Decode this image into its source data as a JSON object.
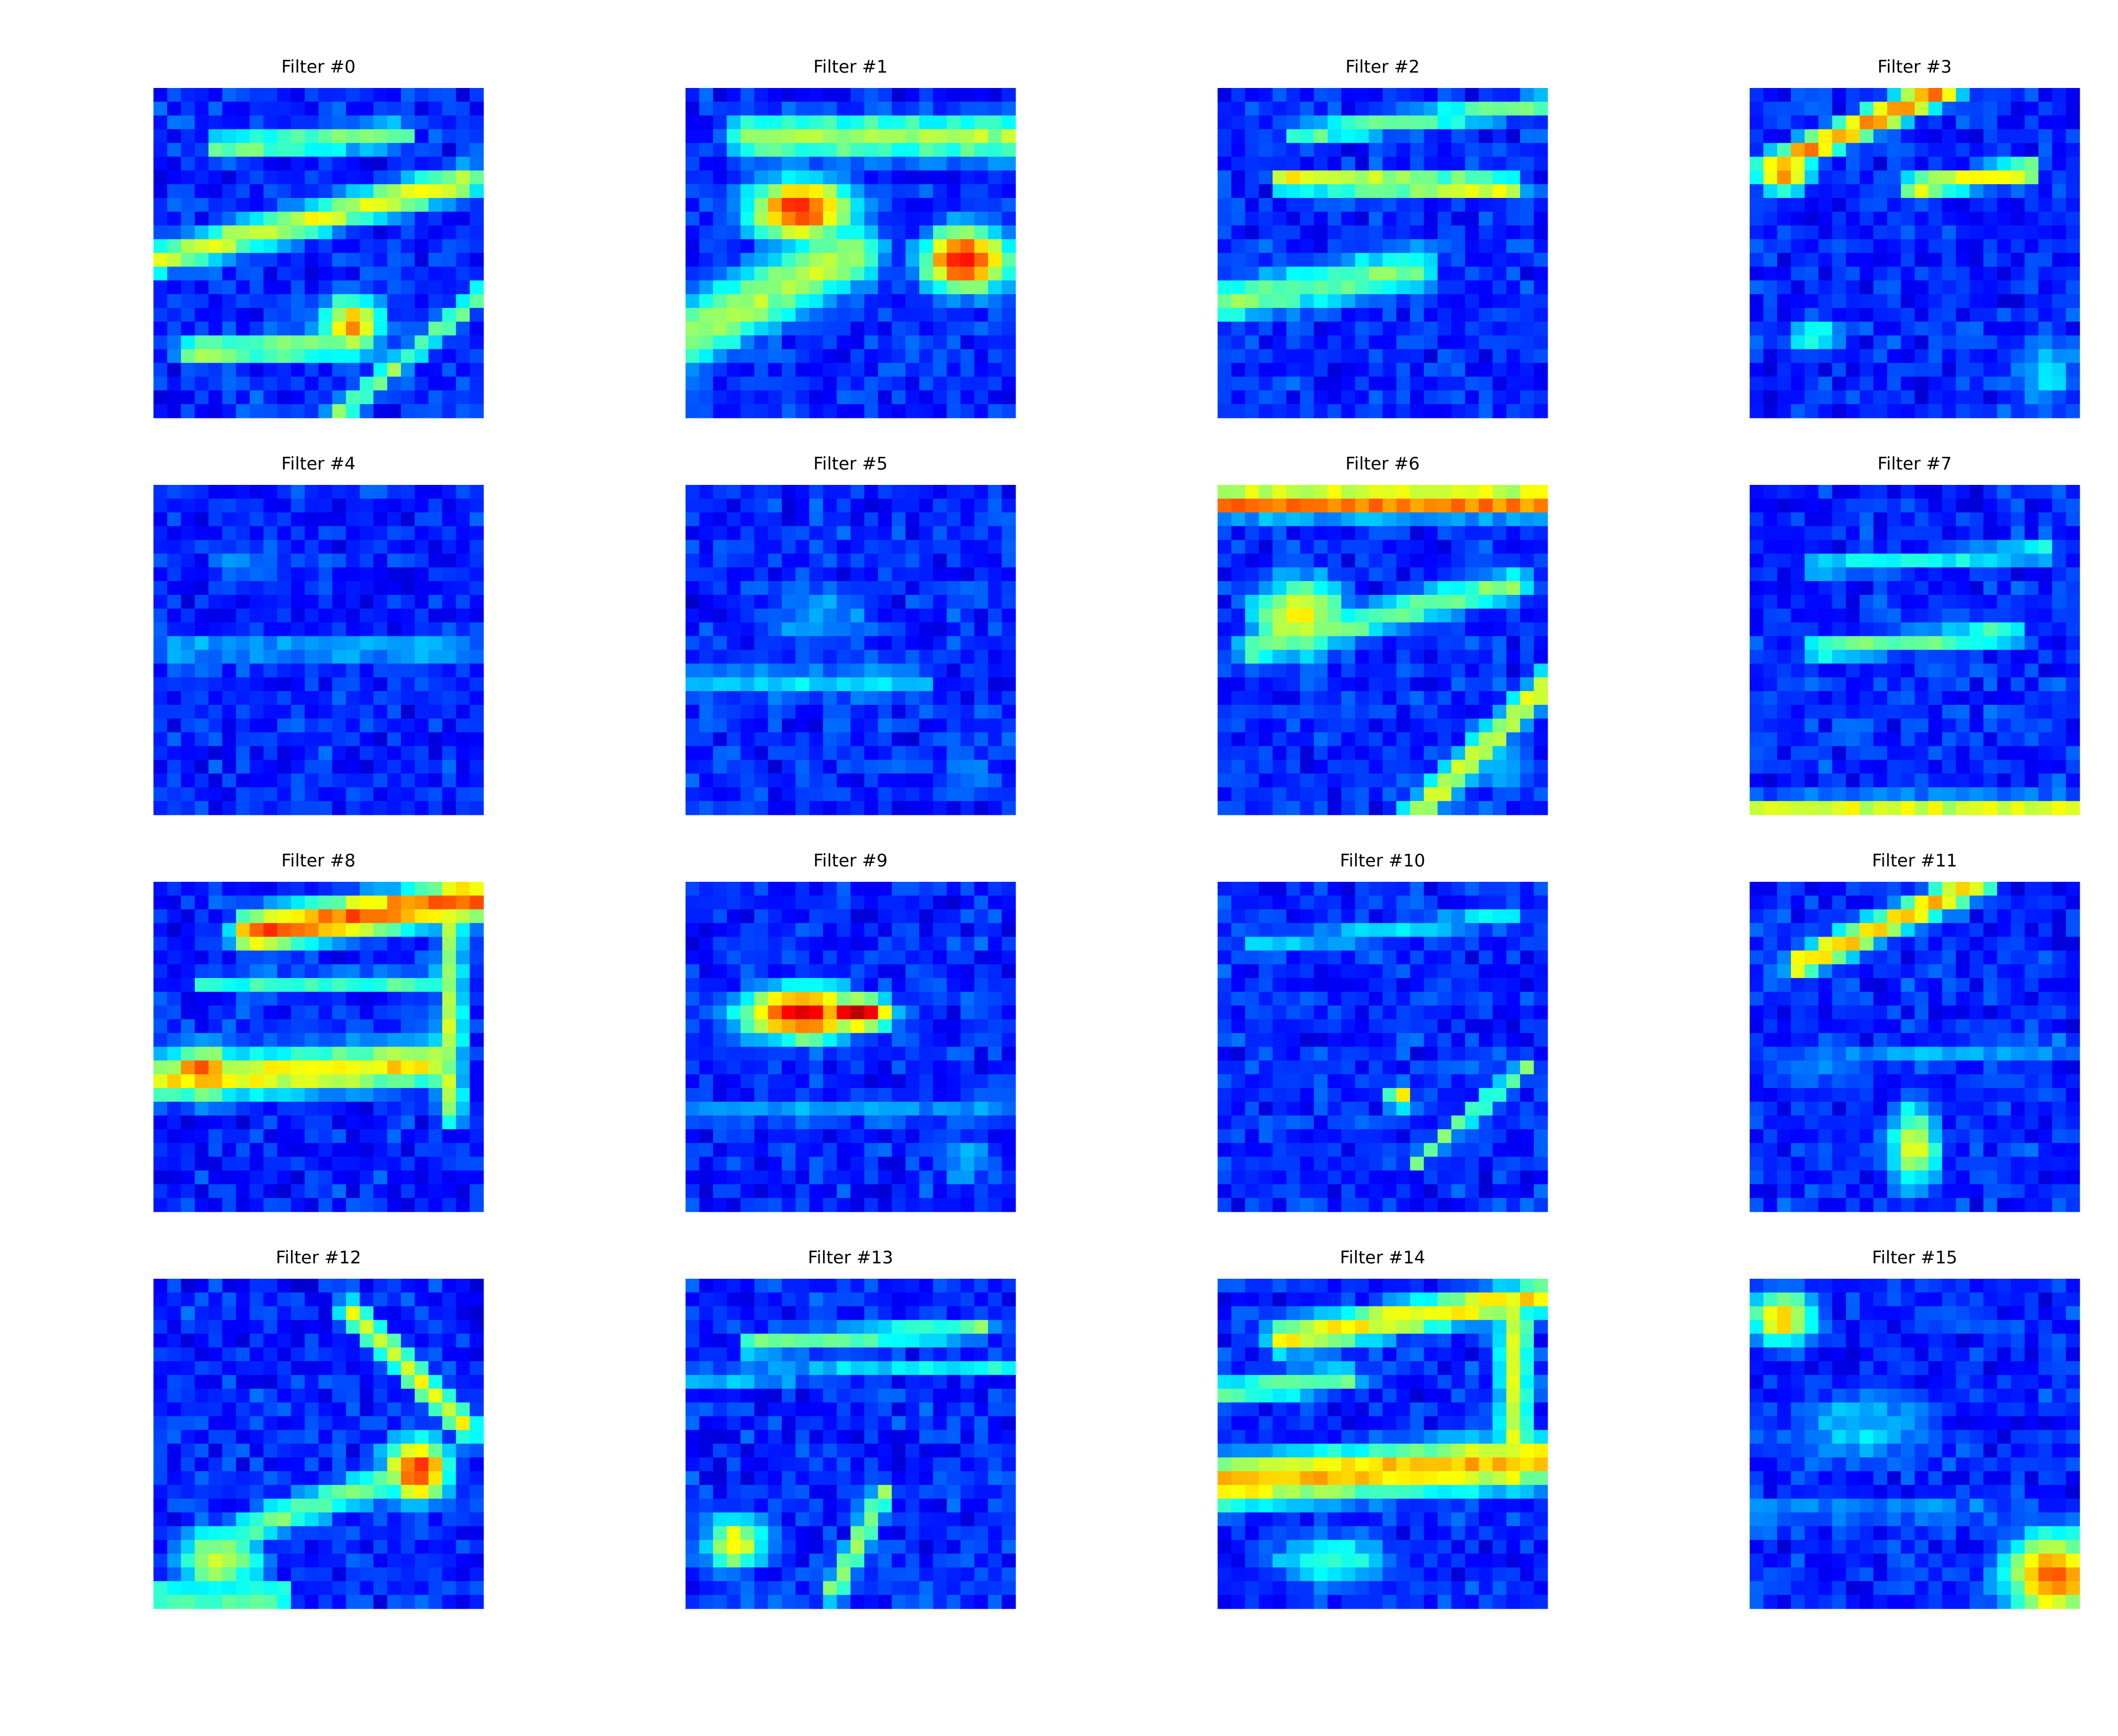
{
  "chart_data": {
    "type": "heatmap",
    "colormap": "jet",
    "grid": false,
    "axes_visible": false,
    "rows": 4,
    "cols": 4,
    "cells_per_side": 24,
    "panels": [
      {
        "title": "Filter #0",
        "features": [
          {
            "type": "band",
            "x0": 0.0,
            "y0": 0.52,
            "x1": 0.95,
            "y1": 0.28,
            "w": 0.06,
            "v": 0.55
          },
          {
            "type": "band",
            "x0": 0.2,
            "y0": 0.18,
            "x1": 0.75,
            "y1": 0.14,
            "w": 0.05,
            "v": 0.45
          },
          {
            "type": "blob",
            "cx": 0.6,
            "cy": 0.72,
            "rx": 0.12,
            "ry": 0.12,
            "v": 0.65
          },
          {
            "type": "band",
            "x0": 0.1,
            "y0": 0.8,
            "x1": 0.6,
            "y1": 0.78,
            "w": 0.05,
            "v": 0.5
          },
          {
            "type": "band",
            "x0": 0.55,
            "y0": 1.0,
            "x1": 1.0,
            "y1": 0.62,
            "w": 0.04,
            "v": 0.45
          }
        ]
      },
      {
        "title": "Filter #1",
        "features": [
          {
            "type": "blob",
            "cx": 0.35,
            "cy": 0.37,
            "rx": 0.2,
            "ry": 0.12,
            "v": 0.8
          },
          {
            "type": "blob",
            "cx": 0.85,
            "cy": 0.52,
            "rx": 0.16,
            "ry": 0.12,
            "v": 0.85
          },
          {
            "type": "band",
            "x0": 0.0,
            "y0": 0.75,
            "x1": 0.5,
            "y1": 0.5,
            "w": 0.12,
            "v": 0.5
          },
          {
            "type": "band",
            "x0": 0.2,
            "y0": 0.15,
            "x1": 1.0,
            "y1": 0.15,
            "w": 0.08,
            "v": 0.5
          }
        ]
      },
      {
        "title": "Filter #2",
        "features": [
          {
            "type": "band",
            "x0": 0.2,
            "y0": 0.28,
            "x1": 0.9,
            "y1": 0.3,
            "w": 0.04,
            "v": 0.6
          },
          {
            "type": "band",
            "x0": 0.0,
            "y0": 0.65,
            "x1": 0.6,
            "y1": 0.55,
            "w": 0.08,
            "v": 0.45
          },
          {
            "type": "band",
            "x0": 0.25,
            "y0": 0.14,
            "x1": 1.0,
            "y1": 0.05,
            "w": 0.04,
            "v": 0.45
          }
        ]
      },
      {
        "title": "Filter #3",
        "features": [
          {
            "type": "blob",
            "cx": 0.1,
            "cy": 0.25,
            "rx": 0.1,
            "ry": 0.08,
            "v": 0.75
          },
          {
            "type": "band",
            "x0": 0.15,
            "y0": 0.2,
            "x1": 0.6,
            "y1": 0.0,
            "w": 0.05,
            "v": 0.7
          },
          {
            "type": "blob",
            "cx": 0.9,
            "cy": 0.86,
            "rx": 0.15,
            "ry": 0.14,
            "v": 0.3
          },
          {
            "type": "band",
            "x0": 0.5,
            "y0": 0.3,
            "x1": 0.85,
            "y1": 0.25,
            "w": 0.04,
            "v": 0.6
          },
          {
            "type": "blob",
            "cx": 0.2,
            "cy": 0.75,
            "rx": 0.1,
            "ry": 0.05,
            "v": 0.45
          }
        ]
      },
      {
        "title": "Filter #4",
        "features": [
          {
            "type": "band",
            "x0": 0.05,
            "y0": 0.5,
            "x1": 0.95,
            "y1": 0.5,
            "w": 0.06,
            "v": 0.25
          },
          {
            "type": "blob",
            "cx": 0.3,
            "cy": 0.25,
            "rx": 0.25,
            "ry": 0.12,
            "v": 0.2
          }
        ]
      },
      {
        "title": "Filter #5",
        "features": [
          {
            "type": "blob",
            "cx": 0.4,
            "cy": 0.4,
            "rx": 0.25,
            "ry": 0.15,
            "v": 0.25
          },
          {
            "type": "band",
            "x0": 0.0,
            "y0": 0.6,
            "x1": 0.7,
            "y1": 0.6,
            "w": 0.06,
            "v": 0.3
          },
          {
            "type": "blob",
            "cx": 0.85,
            "cy": 0.88,
            "rx": 0.14,
            "ry": 0.12,
            "v": 0.2
          }
        ]
      },
      {
        "title": "Filter #6",
        "features": [
          {
            "type": "blob",
            "cx": 0.25,
            "cy": 0.4,
            "rx": 0.18,
            "ry": 0.15,
            "v": 0.6
          },
          {
            "type": "band",
            "x0": 0.0,
            "y0": 0.05,
            "x1": 1.0,
            "y1": 0.05,
            "w": 0.05,
            "v": 0.75
          },
          {
            "type": "band",
            "x0": 0.6,
            "y0": 1.0,
            "x1": 1.0,
            "y1": 0.6,
            "w": 0.05,
            "v": 0.55
          },
          {
            "type": "band",
            "x0": 0.1,
            "y0": 0.5,
            "x1": 0.9,
            "y1": 0.3,
            "w": 0.06,
            "v": 0.45
          },
          {
            "type": "blob",
            "cx": 0.85,
            "cy": 0.85,
            "rx": 0.13,
            "ry": 0.12,
            "v": 0.28
          }
        ]
      },
      {
        "title": "Filter #7",
        "features": [
          {
            "type": "band",
            "x0": 0.2,
            "y0": 0.5,
            "x1": 0.8,
            "y1": 0.45,
            "w": 0.04,
            "v": 0.45
          },
          {
            "type": "band",
            "x0": 0.2,
            "y0": 0.25,
            "x1": 0.9,
            "y1": 0.2,
            "w": 0.04,
            "v": 0.35
          },
          {
            "type": "band",
            "x0": 0.0,
            "y0": 0.97,
            "x1": 1.0,
            "y1": 0.97,
            "w": 0.03,
            "v": 0.6
          }
        ]
      },
      {
        "title": "Filter #8",
        "features": [
          {
            "type": "band",
            "x0": 0.3,
            "y0": 0.15,
            "x1": 1.0,
            "y1": 0.05,
            "w": 0.07,
            "v": 0.75
          },
          {
            "type": "blob",
            "cx": 0.15,
            "cy": 0.58,
            "rx": 0.15,
            "ry": 0.1,
            "v": 0.75
          },
          {
            "type": "band",
            "x0": 0.0,
            "y0": 0.6,
            "x1": 0.85,
            "y1": 0.55,
            "w": 0.08,
            "v": 0.6
          },
          {
            "type": "band",
            "x0": 0.9,
            "y0": 0.1,
            "x1": 0.9,
            "y1": 0.7,
            "w": 0.05,
            "v": 0.5
          },
          {
            "type": "band",
            "x0": 0.15,
            "y0": 0.3,
            "x1": 0.9,
            "y1": 0.3,
            "w": 0.03,
            "v": 0.45
          }
        ]
      },
      {
        "title": "Filter #9",
        "features": [
          {
            "type": "blob",
            "cx": 0.35,
            "cy": 0.4,
            "rx": 0.22,
            "ry": 0.1,
            "v": 0.85
          },
          {
            "type": "blob",
            "cx": 0.52,
            "cy": 0.4,
            "rx": 0.12,
            "ry": 0.06,
            "v": 0.95
          },
          {
            "type": "blob",
            "cx": 0.85,
            "cy": 0.85,
            "rx": 0.16,
            "ry": 0.12,
            "v": 0.25
          },
          {
            "type": "band",
            "x0": 0.0,
            "y0": 0.7,
            "x1": 1.0,
            "y1": 0.7,
            "w": 0.04,
            "v": 0.25
          }
        ]
      },
      {
        "title": "Filter #10",
        "features": [
          {
            "type": "band",
            "x0": 0.6,
            "y0": 0.85,
            "x1": 0.95,
            "y1": 0.55,
            "w": 0.03,
            "v": 0.45
          },
          {
            "type": "blob",
            "cx": 0.55,
            "cy": 0.65,
            "rx": 0.05,
            "ry": 0.05,
            "v": 0.6
          },
          {
            "type": "band",
            "x0": 0.1,
            "y0": 0.2,
            "x1": 0.9,
            "y1": 0.1,
            "w": 0.04,
            "v": 0.3
          }
        ]
      },
      {
        "title": "Filter #11",
        "features": [
          {
            "type": "band",
            "x0": 0.15,
            "y0": 0.25,
            "x1": 0.7,
            "y1": 0.0,
            "w": 0.05,
            "v": 0.65
          },
          {
            "type": "blob",
            "cx": 0.5,
            "cy": 0.8,
            "rx": 0.1,
            "ry": 0.16,
            "v": 0.55
          },
          {
            "type": "band",
            "x0": 0.1,
            "y0": 0.55,
            "x1": 0.95,
            "y1": 0.5,
            "w": 0.04,
            "v": 0.25
          }
        ]
      },
      {
        "title": "Filter #12",
        "features": [
          {
            "type": "blob",
            "cx": 0.8,
            "cy": 0.58,
            "rx": 0.12,
            "ry": 0.12,
            "v": 0.8
          },
          {
            "type": "band",
            "x0": 0.6,
            "y0": 0.1,
            "x1": 0.95,
            "y1": 0.45,
            "w": 0.05,
            "v": 0.55
          },
          {
            "type": "blob",
            "cx": 0.2,
            "cy": 0.85,
            "rx": 0.16,
            "ry": 0.12,
            "v": 0.55
          },
          {
            "type": "band",
            "x0": 0.3,
            "y0": 0.75,
            "x1": 0.75,
            "y1": 0.6,
            "w": 0.06,
            "v": 0.45
          },
          {
            "type": "band",
            "x0": 0.0,
            "y0": 0.96,
            "x1": 0.4,
            "y1": 0.96,
            "w": 0.03,
            "v": 0.6
          }
        ]
      },
      {
        "title": "Filter #13",
        "features": [
          {
            "type": "blob",
            "cx": 0.15,
            "cy": 0.8,
            "rx": 0.12,
            "ry": 0.1,
            "v": 0.6
          },
          {
            "type": "band",
            "x0": 0.45,
            "y0": 0.95,
            "x1": 0.6,
            "y1": 0.65,
            "w": 0.04,
            "v": 0.5
          },
          {
            "type": "band",
            "x0": 0.2,
            "y0": 0.2,
            "x1": 0.9,
            "y1": 0.15,
            "w": 0.04,
            "v": 0.45
          },
          {
            "type": "band",
            "x0": 0.0,
            "y0": 0.3,
            "x1": 1.0,
            "y1": 0.27,
            "w": 0.03,
            "v": 0.35
          }
        ]
      },
      {
        "title": "Filter #14",
        "features": [
          {
            "type": "band",
            "x0": 0.0,
            "y0": 0.62,
            "x1": 1.0,
            "y1": 0.55,
            "w": 0.09,
            "v": 0.65
          },
          {
            "type": "band",
            "x0": 0.9,
            "y0": 0.1,
            "x1": 0.9,
            "y1": 0.6,
            "w": 0.06,
            "v": 0.55
          },
          {
            "type": "band",
            "x0": 0.2,
            "y0": 0.18,
            "x1": 1.0,
            "y1": 0.05,
            "w": 0.06,
            "v": 0.6
          },
          {
            "type": "band",
            "x0": 0.0,
            "y0": 0.35,
            "x1": 0.4,
            "y1": 0.3,
            "w": 0.05,
            "v": 0.45
          },
          {
            "type": "blob",
            "cx": 0.35,
            "cy": 0.85,
            "rx": 0.25,
            "ry": 0.1,
            "v": 0.4
          }
        ]
      },
      {
        "title": "Filter #15",
        "features": [
          {
            "type": "blob",
            "cx": 0.92,
            "cy": 0.9,
            "rx": 0.18,
            "ry": 0.16,
            "v": 0.75
          },
          {
            "type": "blob",
            "cx": 0.1,
            "cy": 0.12,
            "rx": 0.12,
            "ry": 0.1,
            "v": 0.65
          },
          {
            "type": "blob",
            "cx": 0.35,
            "cy": 0.45,
            "rx": 0.3,
            "ry": 0.15,
            "v": 0.3
          },
          {
            "type": "band",
            "x0": 0.0,
            "y0": 0.7,
            "x1": 0.7,
            "y1": 0.7,
            "w": 0.05,
            "v": 0.22
          }
        ]
      }
    ]
  }
}
